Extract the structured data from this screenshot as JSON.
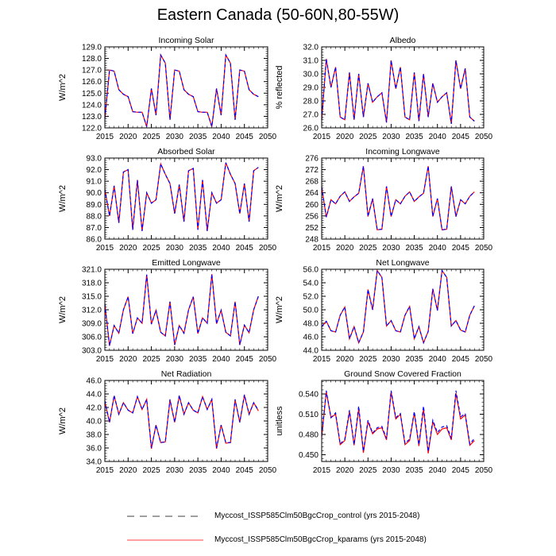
{
  "title": "Eastern Canada (50-60N,80-55W)",
  "colors": {
    "control": "#0000ff",
    "kparams": "#ff0000",
    "axis": "#000000"
  },
  "legend": [
    {
      "label": "Myccost_ISSP585Clm50BgcCrop_control (yrs 2015-2048)",
      "style": "dashed",
      "color": "#000000"
    },
    {
      "label": "Myccost_ISSP585Clm50BgcCrop_kparams (yrs 2015-2048)",
      "style": "solid",
      "color": "#ff0000"
    }
  ],
  "chart_data": [
    {
      "type": "line",
      "title": "Incoming Solar",
      "ylabel": "W/m^2",
      "xlim": [
        2015,
        2050
      ],
      "ylim": [
        122,
        129
      ],
      "xticks": [
        2015,
        2020,
        2025,
        2030,
        2035,
        2040,
        2045,
        2050
      ],
      "yticks": [
        "122.0",
        "123.0",
        "124.0",
        "125.0",
        "126.0",
        "127.0",
        "128.0",
        "129.0"
      ],
      "series": [
        {
          "name": "control",
          "values": [
            122.8,
            127.0,
            126.9,
            125.3,
            124.9,
            124.7,
            123.4,
            123.35,
            123.35,
            122.1,
            125.4,
            123.1,
            128.3,
            127.6,
            122.7,
            127.0,
            126.9,
            125.3,
            124.9,
            124.7,
            123.4,
            123.35,
            123.35,
            122.1,
            125.4,
            123.1,
            128.3,
            127.6,
            122.7,
            127.0,
            126.9,
            125.3,
            124.9,
            124.7
          ]
        },
        {
          "name": "kparams",
          "values": [
            122.8,
            127.0,
            126.9,
            125.3,
            124.9,
            124.7,
            123.4,
            123.35,
            123.35,
            122.1,
            125.4,
            123.1,
            128.3,
            127.6,
            122.7,
            127.0,
            126.9,
            125.3,
            124.9,
            124.7,
            123.4,
            123.35,
            123.35,
            122.1,
            125.4,
            123.1,
            128.3,
            127.6,
            122.7,
            127.0,
            126.9,
            125.3,
            124.9,
            124.7
          ]
        }
      ]
    },
    {
      "type": "line",
      "title": "Albedo",
      "ylabel": "% reflected",
      "xlim": [
        2015,
        2050
      ],
      "ylim": [
        26,
        32
      ],
      "xticks": [
        2015,
        2020,
        2025,
        2030,
        2035,
        2040,
        2045,
        2050
      ],
      "yticks": [
        "26.0",
        "27.0",
        "28.0",
        "29.0",
        "30.0",
        "31.0",
        "32.0"
      ],
      "series": [
        {
          "name": "control",
          "values": [
            26.6,
            31.1,
            29.0,
            30.5,
            26.8,
            26.6,
            30.1,
            26.6,
            30.0,
            26.8,
            29.3,
            27.9,
            28.3,
            28.6,
            26.4,
            31.0,
            28.9,
            30.5,
            26.8,
            26.6,
            30.1,
            26.5,
            30.0,
            26.8,
            29.3,
            27.9,
            28.3,
            28.6,
            26.3,
            31.0,
            28.9,
            30.4,
            26.8,
            26.5
          ]
        },
        {
          "name": "kparams",
          "values": [
            26.6,
            31.1,
            29.0,
            30.5,
            26.8,
            26.6,
            30.1,
            26.6,
            30.0,
            26.8,
            29.3,
            27.9,
            28.3,
            28.6,
            26.4,
            31.0,
            28.9,
            30.5,
            26.8,
            26.6,
            30.1,
            26.5,
            30.0,
            26.8,
            29.3,
            27.9,
            28.3,
            28.6,
            26.3,
            31.0,
            28.9,
            30.4,
            26.8,
            26.5
          ]
        }
      ]
    },
    {
      "type": "line",
      "title": "Absorbed Solar",
      "ylabel": "W/m^2",
      "xlim": [
        2015,
        2050
      ],
      "ylim": [
        86,
        93
      ],
      "xticks": [
        2015,
        2020,
        2025,
        2030,
        2035,
        2040,
        2045,
        2050
      ],
      "yticks": [
        "86.0",
        "87.0",
        "88.0",
        "89.0",
        "90.0",
        "91.0",
        "92.0",
        "93.0"
      ],
      "series": [
        {
          "name": "control",
          "values": [
            90.3,
            88.0,
            90.6,
            87.4,
            91.8,
            92.0,
            86.8,
            91.1,
            86.7,
            90.0,
            89.1,
            89.4,
            92.5,
            91.6,
            90.8,
            88.2,
            90.7,
            87.5,
            91.9,
            92.1,
            86.8,
            91.1,
            86.7,
            90.0,
            89.1,
            89.4,
            92.6,
            91.6,
            90.8,
            88.2,
            90.8,
            87.5,
            91.9,
            92.2
          ]
        },
        {
          "name": "kparams",
          "values": [
            90.3,
            88.0,
            90.6,
            87.4,
            91.8,
            92.0,
            86.8,
            91.1,
            86.7,
            90.0,
            89.1,
            89.4,
            92.5,
            91.6,
            90.8,
            88.2,
            90.7,
            87.5,
            91.9,
            92.1,
            86.8,
            91.1,
            86.7,
            90.0,
            89.1,
            89.4,
            92.6,
            91.6,
            90.8,
            88.2,
            90.8,
            87.5,
            91.9,
            92.2
          ]
        }
      ]
    },
    {
      "type": "line",
      "title": "Incoming Longwave",
      "ylabel": "W/m^2",
      "xlim": [
        2015,
        2050
      ],
      "ylim": [
        248,
        276
      ],
      "xticks": [
        2015,
        2020,
        2025,
        2030,
        2035,
        2040,
        2045,
        2050
      ],
      "yticks": [
        "248",
        "252",
        "256",
        "260",
        "264",
        "268",
        "272",
        "276"
      ],
      "series": [
        {
          "name": "control",
          "values": [
            266.0,
            255.6,
            261.6,
            260.2,
            262.8,
            264.3,
            261.0,
            262.6,
            263.8,
            273.2,
            255.8,
            262.0,
            251.2,
            251.4,
            266.2,
            255.8,
            261.6,
            260.2,
            262.8,
            264.3,
            261.0,
            262.6,
            263.8,
            273.2,
            255.8,
            262.0,
            251.2,
            251.4,
            266.2,
            255.8,
            261.6,
            260.2,
            262.8,
            264.3
          ]
        },
        {
          "name": "kparams",
          "values": [
            266.0,
            255.6,
            261.6,
            260.2,
            262.8,
            264.3,
            261.0,
            262.6,
            263.8,
            273.2,
            255.8,
            262.0,
            251.2,
            251.4,
            266.2,
            255.8,
            261.6,
            260.2,
            262.8,
            264.3,
            261.0,
            262.6,
            263.8,
            273.2,
            255.8,
            262.0,
            251.2,
            251.4,
            266.2,
            255.8,
            261.6,
            260.2,
            262.8,
            264.3
          ]
        }
      ]
    },
    {
      "type": "line",
      "title": "Emitted Longwave",
      "ylabel": "W/m^2",
      "xlim": [
        2015,
        2050
      ],
      "ylim": [
        303,
        321
      ],
      "xticks": [
        2015,
        2020,
        2025,
        2030,
        2035,
        2040,
        2045,
        2050
      ],
      "yticks": [
        "303.0",
        "306.0",
        "309.0",
        "312.0",
        "315.0",
        "318.0",
        "321.0"
      ],
      "series": [
        {
          "name": "control",
          "values": [
            313.3,
            304.0,
            308.5,
            306.8,
            312.0,
            314.9,
            306.7,
            310.2,
            309.0,
            319.8,
            308.8,
            311.9,
            307.0,
            306.2,
            313.8,
            304.2,
            308.5,
            306.8,
            312.0,
            314.9,
            306.7,
            310.2,
            309.0,
            319.9,
            308.9,
            311.9,
            307.0,
            306.2,
            313.8,
            304.2,
            308.6,
            306.9,
            312.0,
            315.0
          ]
        },
        {
          "name": "kparams",
          "values": [
            313.3,
            304.0,
            308.5,
            306.8,
            312.0,
            314.9,
            306.7,
            310.2,
            309.0,
            319.8,
            308.8,
            311.9,
            307.0,
            306.2,
            313.8,
            304.2,
            308.5,
            306.8,
            312.0,
            314.9,
            306.7,
            310.2,
            309.0,
            319.9,
            308.9,
            311.9,
            307.0,
            306.2,
            313.8,
            304.2,
            308.6,
            306.9,
            312.0,
            315.0
          ]
        }
      ]
    },
    {
      "type": "line",
      "title": "Net Longwave",
      "ylabel": "W/m^2",
      "xlim": [
        2015,
        2050
      ],
      "ylim": [
        44,
        56
      ],
      "xticks": [
        2015,
        2020,
        2025,
        2030,
        2035,
        2040,
        2045,
        2050
      ],
      "yticks": [
        "44.0",
        "46.0",
        "48.0",
        "50.0",
        "52.0",
        "54.0",
        "56.0"
      ],
      "series": [
        {
          "name": "control",
          "values": [
            47.5,
            48.3,
            46.9,
            46.7,
            49.2,
            50.4,
            45.7,
            47.5,
            45.1,
            46.7,
            53.0,
            50.0,
            55.8,
            54.8,
            47.6,
            48.4,
            46.9,
            46.7,
            49.2,
            50.5,
            45.7,
            47.5,
            45.1,
            46.8,
            53.1,
            49.9,
            55.8,
            54.8,
            47.6,
            48.4,
            47.0,
            46.7,
            49.2,
            50.6
          ]
        },
        {
          "name": "kparams",
          "values": [
            47.5,
            48.3,
            46.9,
            46.7,
            49.2,
            50.4,
            45.7,
            47.5,
            45.1,
            46.7,
            53.0,
            50.0,
            55.8,
            54.8,
            47.6,
            48.4,
            46.9,
            46.7,
            49.2,
            50.5,
            45.7,
            47.5,
            45.1,
            46.8,
            53.1,
            49.9,
            55.8,
            54.8,
            47.6,
            48.4,
            47.0,
            46.7,
            49.2,
            50.6
          ]
        }
      ]
    },
    {
      "type": "line",
      "title": "Net Radiation",
      "ylabel": "W/m^2",
      "xlim": [
        2015,
        2050
      ],
      "ylim": [
        34,
        46
      ],
      "xticks": [
        2015,
        2020,
        2025,
        2030,
        2035,
        2040,
        2045,
        2050
      ],
      "yticks": [
        "34.0",
        "36.0",
        "38.0",
        "40.0",
        "42.0",
        "44.0",
        "46.0"
      ],
      "series": [
        {
          "name": "control",
          "values": [
            43.0,
            39.8,
            43.8,
            41.0,
            42.7,
            41.6,
            41.2,
            43.6,
            41.7,
            43.2,
            36.0,
            39.4,
            36.8,
            36.9,
            43.2,
            39.8,
            43.8,
            41.0,
            42.7,
            41.6,
            41.2,
            43.6,
            41.7,
            43.2,
            36.0,
            39.4,
            36.8,
            36.8,
            43.2,
            39.8,
            43.9,
            41.0,
            42.7,
            41.6
          ]
        },
        {
          "name": "kparams",
          "values": [
            42.8,
            39.8,
            43.7,
            41.0,
            42.7,
            41.6,
            41.2,
            43.6,
            41.7,
            43.2,
            35.9,
            39.4,
            36.8,
            36.9,
            43.1,
            39.8,
            43.7,
            41.0,
            42.7,
            41.6,
            41.2,
            43.6,
            41.7,
            43.2,
            35.9,
            39.4,
            36.7,
            36.8,
            43.1,
            39.8,
            43.8,
            41.0,
            42.7,
            41.5
          ]
        }
      ]
    },
    {
      "type": "line",
      "title": "Ground Snow Covered Fraction",
      "ylabel": "unitless",
      "xlim": [
        2015,
        2050
      ],
      "ylim": [
        0.44,
        0.56
      ],
      "xticks": [
        2015,
        2020,
        2025,
        2030,
        2035,
        2040,
        2045,
        2050
      ],
      "yticks": [
        "0.450",
        "0.480",
        "0.510",
        "0.540"
      ],
      "series": [
        {
          "name": "control",
          "values": [
            0.478,
            0.545,
            0.505,
            0.512,
            0.466,
            0.473,
            0.516,
            0.465,
            0.522,
            0.455,
            0.501,
            0.482,
            0.49,
            0.492,
            0.474,
            0.545,
            0.505,
            0.511,
            0.467,
            0.473,
            0.514,
            0.465,
            0.522,
            0.455,
            0.501,
            0.483,
            0.491,
            0.493,
            0.474,
            0.545,
            0.506,
            0.511,
            0.466,
            0.474
          ]
        },
        {
          "name": "kparams",
          "values": [
            0.476,
            0.543,
            0.505,
            0.51,
            0.465,
            0.471,
            0.514,
            0.464,
            0.518,
            0.453,
            0.499,
            0.481,
            0.488,
            0.49,
            0.472,
            0.543,
            0.503,
            0.51,
            0.465,
            0.471,
            0.512,
            0.463,
            0.518,
            0.452,
            0.499,
            0.48,
            0.488,
            0.49,
            0.472,
            0.541,
            0.503,
            0.509,
            0.464,
            0.471
          ]
        }
      ]
    }
  ]
}
